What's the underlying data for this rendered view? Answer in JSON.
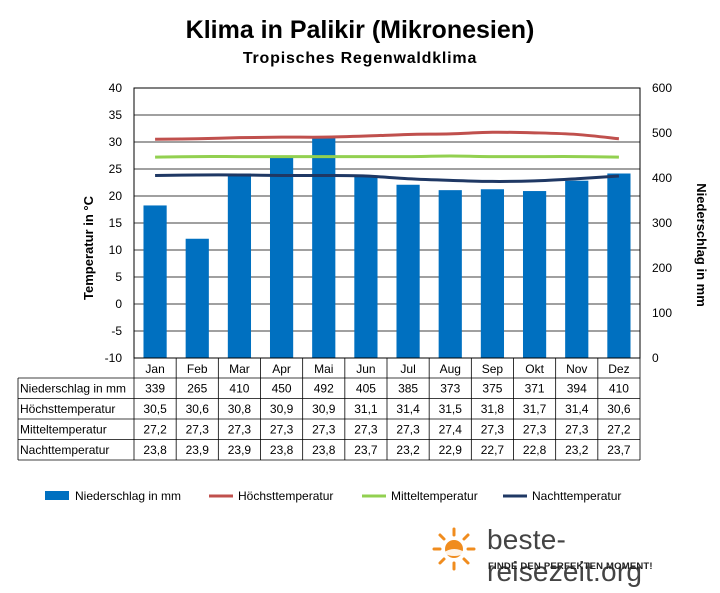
{
  "title": "Klima in Palikir (Mikronesien)",
  "subtitle": "Tropisches Regenwaldklima",
  "chart_data": {
    "type": "bar",
    "categories": [
      "Jan",
      "Feb",
      "Mar",
      "Apr",
      "Mai",
      "Jun",
      "Jul",
      "Aug",
      "Sep",
      "Okt",
      "Nov",
      "Dez"
    ],
    "bar_series": {
      "name": "Niederschlag in mm",
      "color": "#0070C0",
      "values": [
        339,
        265,
        410,
        450,
        492,
        405,
        385,
        373,
        375,
        371,
        394,
        410
      ]
    },
    "line_series": [
      {
        "name": "Höchsttemperatur",
        "color": "#C0504D",
        "values": [
          30.5,
          30.6,
          30.8,
          30.9,
          30.9,
          31.1,
          31.4,
          31.5,
          31.8,
          31.7,
          31.4,
          30.6
        ]
      },
      {
        "name": "Mitteltemperatur",
        "color": "#92D050",
        "values": [
          27.2,
          27.3,
          27.3,
          27.3,
          27.3,
          27.3,
          27.3,
          27.4,
          27.3,
          27.3,
          27.3,
          27.2
        ]
      },
      {
        "name": "Nachttemperatur",
        "color": "#1F3864",
        "values": [
          23.8,
          23.9,
          23.9,
          23.8,
          23.8,
          23.7,
          23.2,
          22.9,
          22.7,
          22.8,
          23.2,
          23.7
        ]
      }
    ],
    "table_rows": [
      {
        "label": "Niederschlag in mm",
        "values": [
          "339",
          "265",
          "410",
          "450",
          "492",
          "405",
          "385",
          "373",
          "375",
          "371",
          "394",
          "410"
        ]
      },
      {
        "label": "Höchsttemperatur",
        "values": [
          "30,5",
          "30,6",
          "30,8",
          "30,9",
          "30,9",
          "31,1",
          "31,4",
          "31,5",
          "31,8",
          "31,7",
          "31,4",
          "30,6"
        ]
      },
      {
        "label": "Mitteltemperatur",
        "values": [
          "27,2",
          "27,3",
          "27,3",
          "27,3",
          "27,3",
          "27,3",
          "27,3",
          "27,4",
          "27,3",
          "27,3",
          "27,3",
          "27,2"
        ]
      },
      {
        "label": "Nachttemperatur",
        "values": [
          "23,8",
          "23,9",
          "23,9",
          "23,8",
          "23,8",
          "23,7",
          "23,2",
          "22,9",
          "22,7",
          "22,8",
          "23,2",
          "23,7"
        ]
      }
    ],
    "ylabel_left": "Temperatur in °C",
    "ylabel_right": "Niederschlag in mm",
    "ylim_left": [
      -10,
      40
    ],
    "ylim_right": [
      0,
      600
    ],
    "yticks_left": [
      -10,
      -5,
      0,
      5,
      10,
      15,
      20,
      25,
      30,
      35,
      40
    ],
    "yticks_right": [
      0,
      100,
      200,
      300,
      400,
      500,
      600
    ],
    "grid": true,
    "legend_position": "bottom"
  },
  "branding": {
    "site": "beste-reisezeit.org",
    "tagline": "FINDE DEN PERFEKTEN MOMENT!",
    "logo_icon": "sun-icon"
  }
}
